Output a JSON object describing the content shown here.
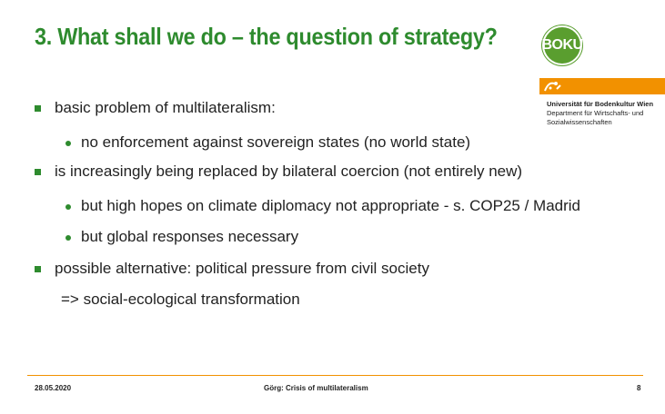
{
  "slide": {
    "title": "3. What shall we do – the question of strategy?",
    "logo_text": "BOKU",
    "university": "Universität für Bodenkultur Wien",
    "department_line1": "Department für Wirtschafts- und",
    "department_line2": "Sozialwissenschaften",
    "bullets": [
      "basic problem of multilateralism:",
      "no enforcement against sovereign states (no world state)",
      "is increasingly being replaced by bilateral coercion (not entirely new)",
      "but high hopes on climate diplomacy not appropriate - s. COP25 / Madrid",
      "but global responses necessary",
      "possible alternative: political pressure from civil society",
      "=> social-ecological transformation"
    ],
    "footer": {
      "date": "28.05.2020",
      "center": "Görg: Crisis of multilateralism",
      "page": "8"
    }
  },
  "colors": {
    "accent_green": "#2e8b2e",
    "accent_orange": "#f29100"
  }
}
